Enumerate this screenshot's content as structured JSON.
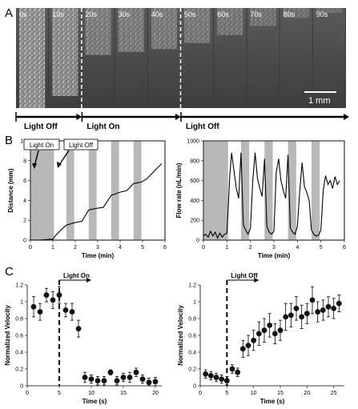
{
  "panel_a": {
    "label": "A",
    "frames": [
      "0s",
      "10s",
      "20s",
      "30s",
      "40s",
      "50s",
      "60s",
      "70s",
      "80s",
      "90s"
    ],
    "front_level": [
      1.0,
      0.88,
      0.47,
      0.44,
      0.41,
      0.35,
      0.27,
      0.18,
      0.1,
      0.05
    ],
    "scale_bar": "1 mm",
    "phases": [
      "Light Off",
      "Light On",
      "Light Off"
    ]
  },
  "chart_data": [
    {
      "type": "line",
      "panel": "B",
      "xlabel": "Time (min)",
      "ylabel": "Distance (mm)",
      "xlim": [
        0,
        6
      ],
      "ylim": [
        0,
        10
      ],
      "xticks": [
        0,
        1,
        2,
        3,
        4,
        5,
        6
      ],
      "yticks": [
        0,
        2,
        4,
        6,
        8,
        10
      ],
      "shaded_intervals": [
        [
          0,
          1.05
        ],
        [
          1.6,
          1.95
        ],
        [
          2.6,
          2.95
        ],
        [
          3.6,
          3.95
        ],
        [
          4.6,
          4.95
        ]
      ],
      "annotations": [
        "Light On",
        "Light Off"
      ],
      "x": [
        0,
        0.5,
        1.0,
        1.1,
        1.35,
        1.6,
        1.95,
        2.3,
        2.6,
        2.95,
        3.25,
        3.6,
        3.95,
        4.3,
        4.6,
        4.95,
        5.2,
        5.5,
        5.85
      ],
      "y": [
        0,
        0.02,
        0.1,
        0.4,
        1.0,
        1.5,
        1.75,
        1.9,
        3.05,
        3.2,
        3.3,
        4.5,
        4.8,
        5.0,
        5.7,
        5.85,
        6.2,
        6.9,
        7.7
      ]
    },
    {
      "type": "line",
      "panel": "B-right",
      "xlabel": "Time (min)",
      "ylabel": "Flow rate (nL/min)",
      "xlim": [
        0,
        6
      ],
      "ylim": [
        0,
        1000
      ],
      "xticks": [
        0,
        1,
        2,
        3,
        4,
        5,
        6
      ],
      "yticks": [
        0,
        200,
        400,
        600,
        800,
        1000
      ],
      "shaded_intervals": [
        [
          0,
          1.05
        ],
        [
          1.6,
          1.95
        ],
        [
          2.6,
          2.95
        ],
        [
          3.6,
          3.95
        ],
        [
          4.6,
          4.95
        ]
      ],
      "x": [
        0,
        0.1,
        0.2,
        0.3,
        0.4,
        0.5,
        0.6,
        0.7,
        0.8,
        0.9,
        1.0,
        1.05,
        1.12,
        1.2,
        1.3,
        1.4,
        1.5,
        1.6,
        1.7,
        1.8,
        1.9,
        2.0,
        2.1,
        2.2,
        2.3,
        2.4,
        2.5,
        2.6,
        2.7,
        2.8,
        2.9,
        3.0,
        3.1,
        3.2,
        3.3,
        3.4,
        3.5,
        3.6,
        3.7,
        3.8,
        3.9,
        4.0,
        4.1,
        4.2,
        4.3,
        4.4,
        4.5,
        4.6,
        4.7,
        4.8,
        4.9,
        5.0,
        5.1,
        5.2,
        5.3,
        5.4,
        5.5,
        5.6,
        5.7,
        5.8
      ],
      "y": [
        40,
        60,
        30,
        90,
        40,
        80,
        20,
        70,
        30,
        60,
        70,
        300,
        650,
        880,
        700,
        520,
        420,
        880,
        150,
        100,
        60,
        120,
        600,
        880,
        620,
        520,
        440,
        820,
        140,
        80,
        60,
        90,
        680,
        820,
        600,
        500,
        420,
        860,
        120,
        80,
        60,
        140,
        500,
        780,
        540,
        480,
        400,
        100,
        60,
        40,
        50,
        100,
        500,
        650,
        560,
        600,
        520,
        640,
        560,
        600
      ]
    },
    {
      "type": "scatter",
      "panel": "C",
      "xlabel": "Time (s)",
      "ylabel": "Normalized Velocity",
      "xlim": [
        0,
        21
      ],
      "ylim": [
        0,
        1.2
      ],
      "xticks": [
        0,
        5,
        10,
        15,
        20
      ],
      "yticks": [
        0,
        0.2,
        0.4,
        0.6,
        0.8,
        1,
        1.2
      ],
      "annotation": "Light On",
      "event_x": 5,
      "x": [
        1,
        2,
        3,
        4,
        5,
        6,
        7,
        8,
        9,
        10,
        11,
        12,
        13,
        14,
        15,
        16,
        17,
        18,
        19,
        20
      ],
      "y": [
        0.94,
        0.88,
        1.08,
        1.02,
        1.08,
        0.9,
        0.88,
        0.68,
        0.1,
        0.08,
        0.06,
        0.06,
        0.16,
        0.06,
        0.1,
        0.1,
        0.16,
        0.08,
        0.04,
        0.05
      ],
      "err": [
        0.12,
        0.1,
        0.08,
        0.1,
        0.1,
        0.08,
        0.1,
        0.1,
        0.06,
        0.05,
        0.05,
        0.05,
        0.03,
        0.05,
        0.05,
        0.06,
        0.05,
        0.05,
        0.05,
        0.05
      ]
    },
    {
      "type": "scatter",
      "panel": "C-right",
      "xlabel": "Time (s)",
      "ylabel": "Normalized Velocity",
      "xlim": [
        0,
        27
      ],
      "ylim": [
        0,
        1.2
      ],
      "xticks": [
        0,
        5,
        10,
        15,
        20,
        25
      ],
      "yticks": [
        0,
        0.2,
        0.4,
        0.6,
        0.8,
        1,
        1.2
      ],
      "annotation": "Light Off",
      "event_x": 5,
      "x": [
        1,
        2,
        3,
        4,
        5,
        6,
        7,
        8,
        9,
        10,
        11,
        12,
        13,
        14,
        15,
        16,
        17,
        18,
        19,
        20,
        21,
        22,
        23,
        24,
        25,
        26
      ],
      "y": [
        0.14,
        0.12,
        0.1,
        0.08,
        0.06,
        0.2,
        0.16,
        0.44,
        0.48,
        0.54,
        0.62,
        0.66,
        0.72,
        0.62,
        0.66,
        0.82,
        0.84,
        0.92,
        0.82,
        0.86,
        1.02,
        0.88,
        0.9,
        0.94,
        0.92,
        0.98
      ],
      "err": [
        0.05,
        0.05,
        0.05,
        0.05,
        0.05,
        0.05,
        0.05,
        0.1,
        0.12,
        0.12,
        0.14,
        0.14,
        0.14,
        0.12,
        0.12,
        0.16,
        0.14,
        0.14,
        0.14,
        0.12,
        0.16,
        0.12,
        0.12,
        0.12,
        0.12,
        0.1
      ]
    }
  ],
  "labels": {
    "panel_b": "B",
    "panel_c": "C"
  }
}
